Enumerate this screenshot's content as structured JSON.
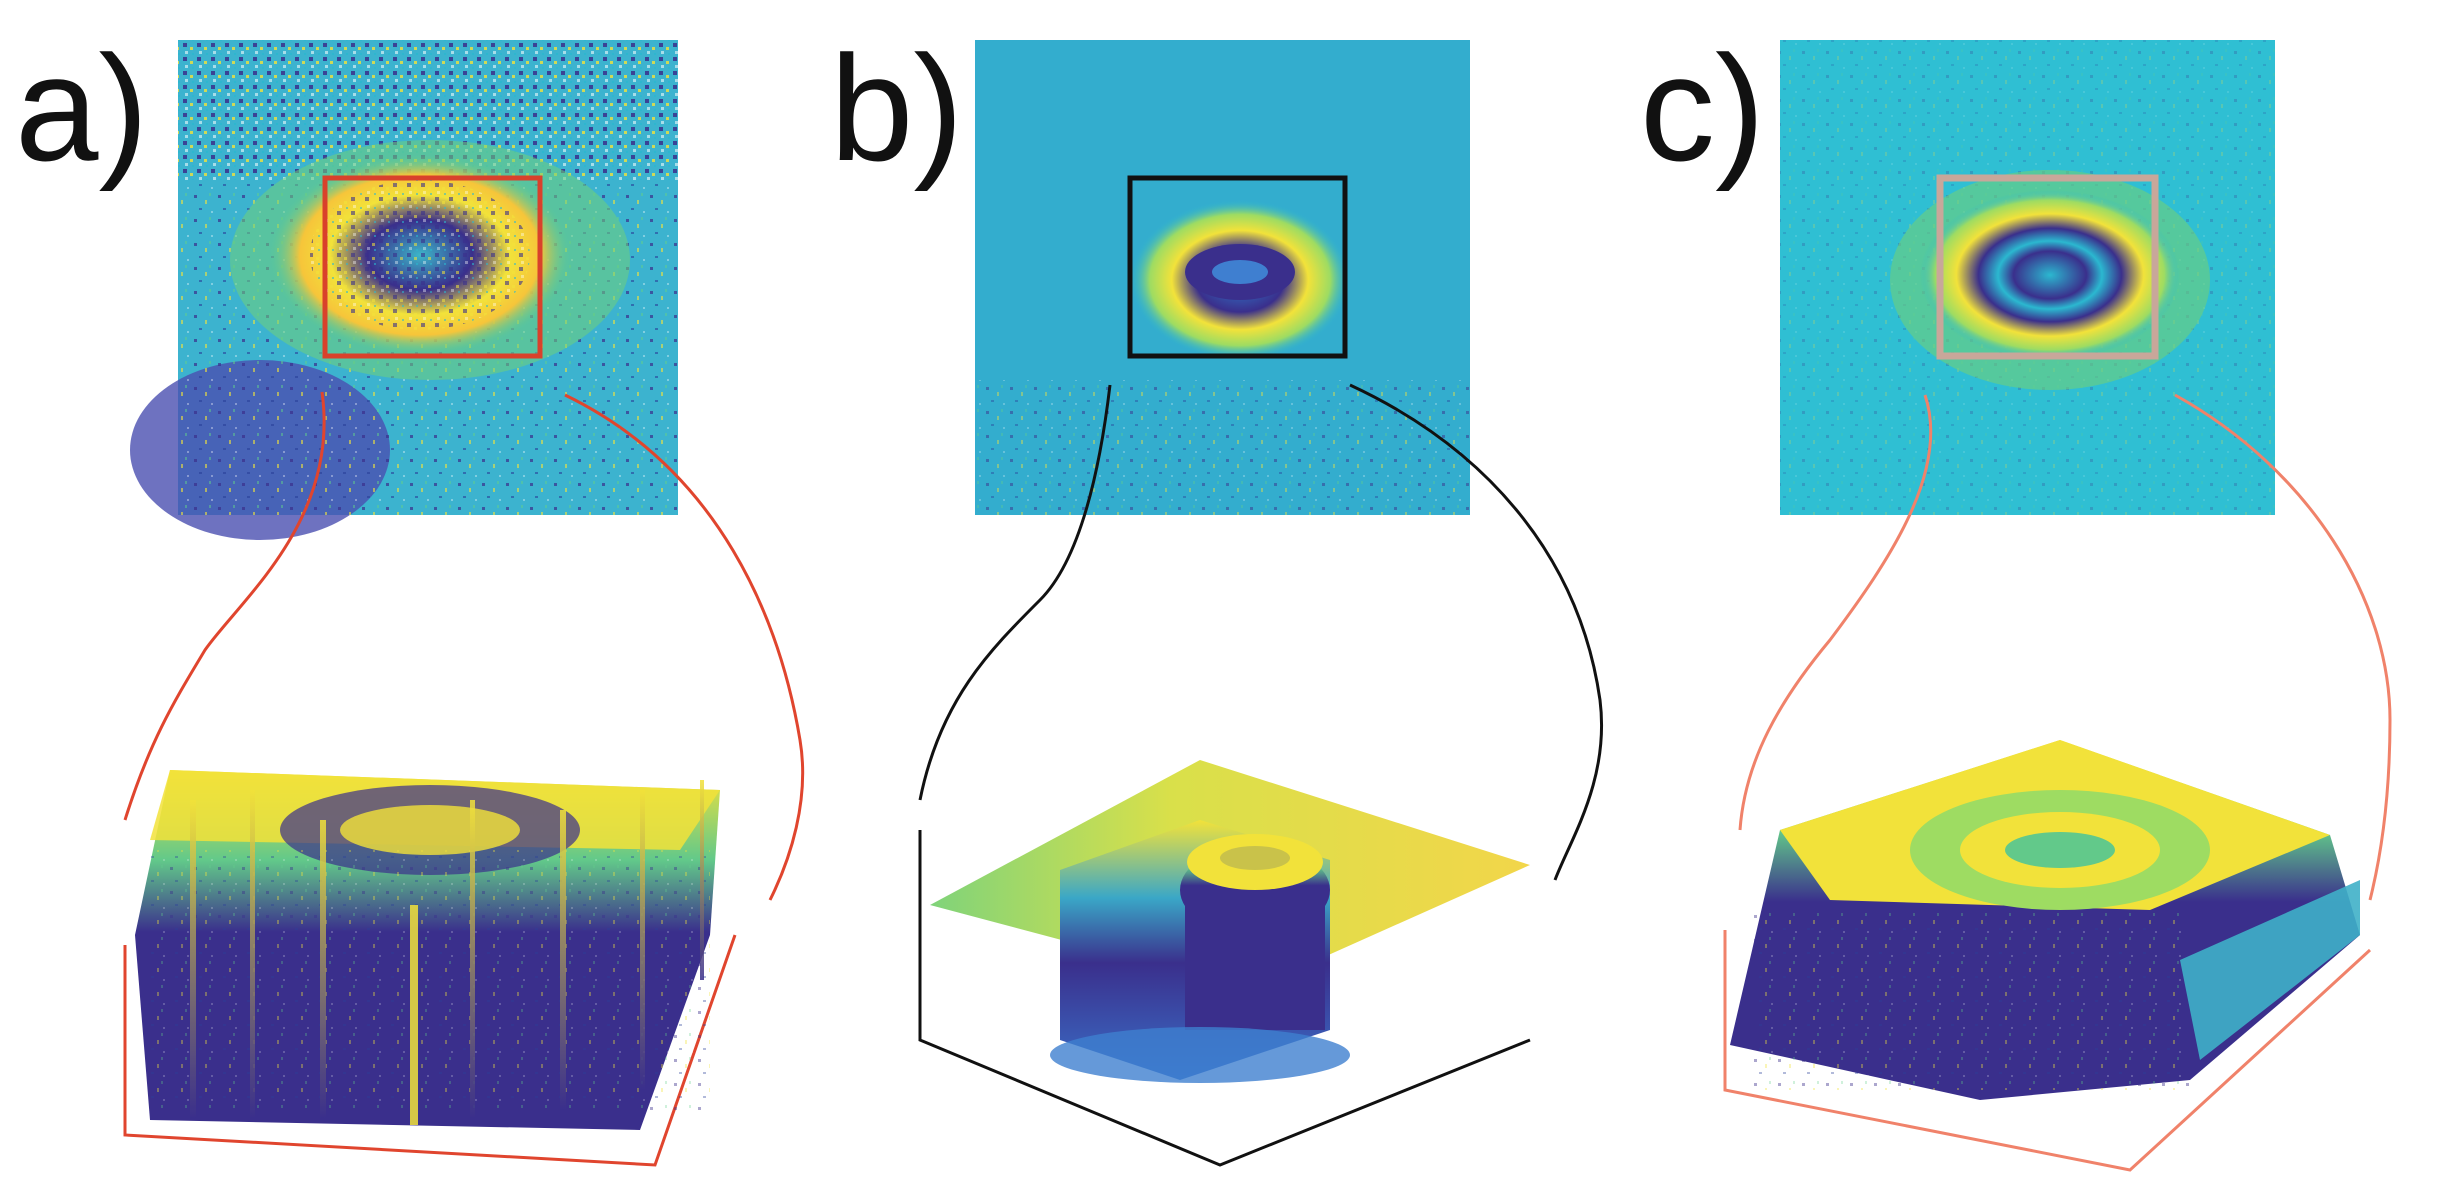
{
  "panels": [
    {
      "label": "a)",
      "frame_color": "#d9412b",
      "connector_color": "#e0452e"
    },
    {
      "label": "b)",
      "frame_color": "#111111",
      "connector_color": "#111111"
    },
    {
      "label": "c)",
      "frame_color": "#c8a79a",
      "connector_color": "#f0826a"
    }
  ],
  "colors": {
    "background": "#ffffff",
    "field_cyan": "#2bb8d0",
    "field_blue": "#3f8fc8",
    "field_green": "#5fcf8a",
    "field_yellow": "#f2e23a",
    "field_purple": "#3a2f8c"
  }
}
